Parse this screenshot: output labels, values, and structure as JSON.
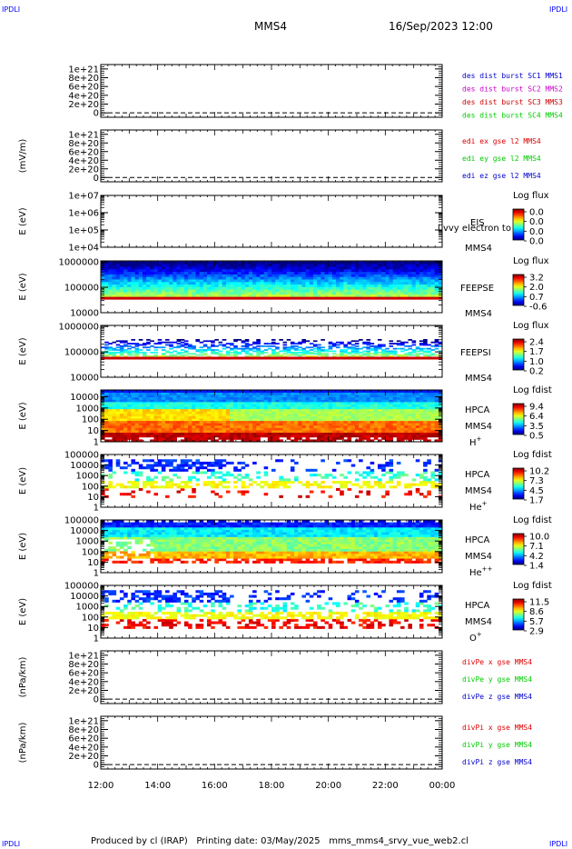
{
  "header": {
    "mission": "MMS4",
    "datetime": "16/Sep/2023 12:00",
    "corner_label": "IPDLI"
  },
  "footer": {
    "text": "Produced by cl (IRAP)   Printing date: 03/May/2025   mms_mms4_srvy_vue_web2.cl"
  },
  "colors": {
    "mms1": "#0000cc",
    "mms2": "#cc00cc",
    "mms3": "#cc0000",
    "mms4": "#00cc00",
    "x": "#dd0000",
    "y": "#00cc00",
    "z": "#0000cc",
    "band_red": "#cc0000",
    "band_orange": "#ff6600"
  },
  "chart_data": [
    {
      "type": "line",
      "name": "des-dist-burst",
      "ylabel": "",
      "ylim": [
        -1e+20,
        1.1e+21
      ],
      "yticks": [
        "1e+21",
        "8e+20",
        "6e+20",
        "4e+20",
        "2e+20",
        "0"
      ],
      "ytick_values": [
        1e+21,
        8e+20,
        6e+20,
        4e+20,
        2e+20,
        0
      ],
      "zero_line": true,
      "series_labels": [
        {
          "text": "des dist burst SC1 MMS1",
          "color": "#0000cc"
        },
        {
          "text": "des dist burst SC2 MMS2",
          "color": "#cc00cc"
        },
        {
          "text": "des dist burst SC3 MMS3",
          "color": "#cc0000"
        },
        {
          "text": "des dist burst SC4 MMS4",
          "color": "#00cc00"
        }
      ]
    },
    {
      "type": "line",
      "name": "edi",
      "ylabel": "(mV/m)",
      "ylim": [
        -1e+20,
        1.1e+21
      ],
      "yticks": [
        "1e+21",
        "8e+20",
        "6e+20",
        "4e+20",
        "2e+20",
        "0"
      ],
      "ytick_values": [
        1e+21,
        8e+20,
        6e+20,
        4e+20,
        2e+20,
        0
      ],
      "zero_line": true,
      "series_labels": [
        {
          "text": "edi ex gse l2 MMS4",
          "color": "#dd0000"
        },
        {
          "text": "edi ey gse l2 MMS4",
          "color": "#00cc00"
        },
        {
          "text": "edi ez gse l2 MMS4",
          "color": "#0000cc"
        }
      ]
    },
    {
      "type": "heatmap",
      "name": "eis",
      "ylabel": "E (eV)",
      "ylog": true,
      "ylim": [
        10000.0,
        10000000.0
      ],
      "yticks": [
        "1e+07",
        "1e+06",
        "1e+05",
        "1e+04"
      ],
      "ytick_values": [
        10000000.0,
        1000000.0,
        100000.0,
        10000.0
      ],
      "instrument": "EIS",
      "spacecraft": "MMS4",
      "overlay_text": "l vvy electron to",
      "cbar_title": "Log flux",
      "cbar_values": [
        "0.0",
        "0.0",
        "0.0",
        "0.0"
      ],
      "empty": true
    },
    {
      "type": "heatmap",
      "name": "feeps-e",
      "ylabel": "E (eV)",
      "ylog": true,
      "ylim": [
        10000.0,
        1100000.0
      ],
      "yticks": [
        "1000000",
        "100000",
        "10000"
      ],
      "ytick_values": [
        1000000.0,
        100000.0,
        10000.0
      ],
      "instrument": "FEEPSE",
      "spacecraft": "MMS4",
      "cbar_title": "Log flux",
      "cbar_values": [
        "3.2",
        "2.0",
        "0.7",
        "-0.6"
      ],
      "fill_top": 1050000.0,
      "band_low": 35000.0,
      "band_high": 42000.0,
      "sparse": false
    },
    {
      "type": "heatmap",
      "name": "feeps-i",
      "ylabel": "E (eV)",
      "ylog": true,
      "ylim": [
        10000.0,
        1100000.0
      ],
      "yticks": [
        "1000000",
        "100000",
        "10000"
      ],
      "ytick_values": [
        1000000.0,
        100000.0,
        10000.0
      ],
      "instrument": "FEEPSI",
      "spacecraft": "MMS4",
      "cbar_title": "Log flux",
      "cbar_values": [
        "2.4",
        "1.7",
        "1.0",
        "0.2"
      ],
      "fill_top": 320000.0,
      "band_low": 55000.0,
      "band_high": 64000.0,
      "sparse": true
    },
    {
      "type": "heatmap",
      "name": "hpca-h",
      "ylabel": "E (eV)",
      "ylog": true,
      "ylim": [
        1,
        40000.0
      ],
      "yticks": [
        "10000",
        "1000",
        "100",
        "10",
        "1"
      ],
      "ytick_values": [
        10000.0,
        1000.0,
        100.0,
        10.0,
        1
      ],
      "instrument": "HPCA",
      "spacecraft": "MMS4",
      "species": "H",
      "species_sup": "+",
      "cbar_title": "Log fdist",
      "cbar_values": [
        "9.4",
        "6.4",
        "3.5",
        "0.5"
      ],
      "sparse": false
    },
    {
      "type": "heatmap",
      "name": "hpca-he",
      "ylabel": "E (eV)",
      "ylog": true,
      "ylim": [
        1,
        100000.0
      ],
      "yticks": [
        "100000",
        "10000",
        "1000",
        "100",
        "10",
        "1"
      ],
      "ytick_values": [
        100000.0,
        10000.0,
        1000.0,
        100.0,
        10.0,
        1
      ],
      "instrument": "HPCA",
      "spacecraft": "MMS4",
      "species": "He",
      "species_sup": "+",
      "cbar_title": "Log fdist",
      "cbar_values": [
        "10.2",
        "7.3",
        "4.5",
        "1.7"
      ],
      "sparse": true
    },
    {
      "type": "heatmap",
      "name": "hpca-he2",
      "ylabel": "E (eV)",
      "ylog": true,
      "ylim": [
        1,
        100000.0
      ],
      "yticks": [
        "100000",
        "10000",
        "1000",
        "100",
        "10",
        "1"
      ],
      "ytick_values": [
        100000.0,
        10000.0,
        1000.0,
        100.0,
        10.0,
        1
      ],
      "instrument": "HPCA",
      "spacecraft": "MMS4",
      "species": "He",
      "species_sup": "++",
      "cbar_title": "Log fdist",
      "cbar_values": [
        "10.0",
        "7.1",
        "4.2",
        "1.4"
      ],
      "sparse": false
    },
    {
      "type": "heatmap",
      "name": "hpca-o",
      "ylabel": "E (eV)",
      "ylog": true,
      "ylim": [
        1,
        100000.0
      ],
      "yticks": [
        "100000",
        "10000",
        "1000",
        "100",
        "10",
        "1"
      ],
      "ytick_values": [
        100000.0,
        10000.0,
        1000.0,
        100.0,
        10.0,
        1
      ],
      "instrument": "HPCA",
      "spacecraft": "MMS4",
      "species": "O",
      "species_sup": "+",
      "cbar_title": "Log fdist",
      "cbar_values": [
        "11.5",
        "8.6",
        "5.7",
        "2.9"
      ],
      "sparse": true
    },
    {
      "type": "line",
      "name": "divpe",
      "ylabel": "(nPa/km)",
      "ylim": [
        -1e+20,
        1.1e+21
      ],
      "yticks": [
        "1e+21",
        "8e+20",
        "6e+20",
        "4e+20",
        "2e+20",
        "0"
      ],
      "ytick_values": [
        1e+21,
        8e+20,
        6e+20,
        4e+20,
        2e+20,
        0
      ],
      "zero_line": true,
      "series_labels": [
        {
          "text": "divPe x gse MMS4",
          "color": "#dd0000"
        },
        {
          "text": "divPe y gse MMS4",
          "color": "#00cc00"
        },
        {
          "text": "divPe z gse MMS4",
          "color": "#0000cc"
        }
      ]
    },
    {
      "type": "line",
      "name": "divpi",
      "ylabel": "(nPa/km)",
      "ylim": [
        -1e+20,
        1.1e+21
      ],
      "yticks": [
        "1e+21",
        "8e+20",
        "6e+20",
        "4e+20",
        "2e+20",
        "0"
      ],
      "ytick_values": [
        1e+21,
        8e+20,
        6e+20,
        4e+20,
        2e+20,
        0
      ],
      "zero_line": true,
      "series_labels": [
        {
          "text": "divPi x gse MMS4",
          "color": "#dd0000"
        },
        {
          "text": "divPi y gse MMS4",
          "color": "#00cc00"
        },
        {
          "text": "divPi z gse MMS4",
          "color": "#0000cc"
        }
      ]
    }
  ],
  "x_axis": {
    "tick_labels": [
      "12:00",
      "14:00",
      "16:00",
      "18:00",
      "20:00",
      "22:00",
      "00:00"
    ],
    "hour_values": [
      12,
      14,
      16,
      18,
      20,
      22,
      24
    ],
    "xlim": [
      12,
      24
    ]
  }
}
